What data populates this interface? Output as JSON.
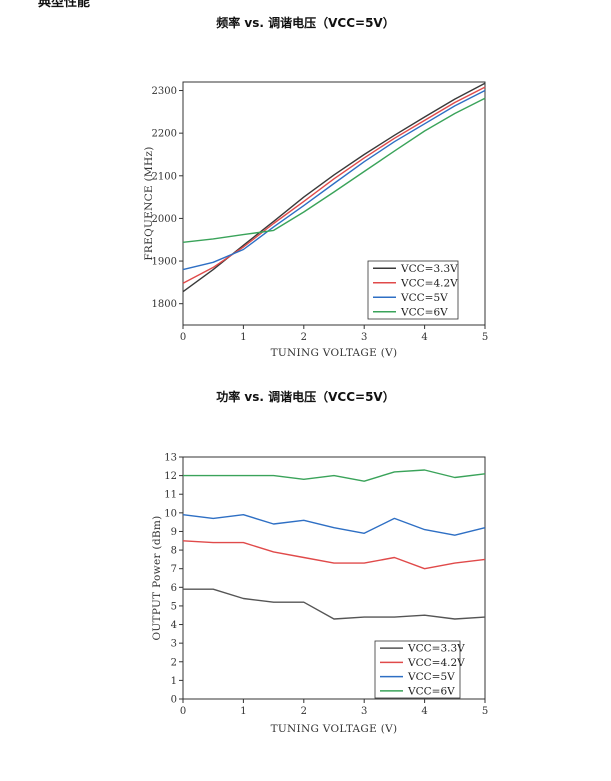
{
  "page": {
    "cut_heading": "典型性能",
    "chart1_title": "频率 vs. 调谐电压（VCC=5V）",
    "chart2_title": "功率 vs. 调谐电压（VCC=5V）"
  },
  "chart_data": [
    {
      "type": "line",
      "title": "频率 vs. 调谐电压（VCC=5V）",
      "xlabel": "TUNING VOLTAGE (V)",
      "ylabel": "FREQUENCE (MHz)",
      "xlim": [
        0,
        5
      ],
      "ylim": [
        1750,
        2320
      ],
      "xticks": [
        0,
        1,
        2,
        3,
        4,
        5
      ],
      "yticks": [
        1800,
        1900,
        2000,
        2100,
        2200,
        2300
      ],
      "grid": false,
      "legend_position": "bottom-right",
      "series": [
        {
          "name": "VCC=3.3V",
          "color": "#3a3a3a",
          "x": [
            0,
            0.5,
            1,
            1.5,
            2,
            2.5,
            3,
            3.5,
            4,
            4.5,
            5
          ],
          "y": [
            1828,
            1880,
            1937,
            1993,
            2050,
            2102,
            2150,
            2195,
            2238,
            2280,
            2317
          ]
        },
        {
          "name": "VCC=4.2V",
          "color": "#e04a4a",
          "x": [
            0,
            0.5,
            1,
            1.5,
            2,
            2.5,
            3,
            3.5,
            4,
            4.5,
            5
          ],
          "y": [
            1848,
            1885,
            1933,
            1988,
            2040,
            2093,
            2142,
            2188,
            2230,
            2272,
            2308
          ]
        },
        {
          "name": "VCC=5V",
          "color": "#2e6fc4",
          "x": [
            0,
            0.5,
            1,
            1.5,
            2,
            2.5,
            3,
            3.5,
            4,
            4.5,
            5
          ],
          "y": [
            1880,
            1897,
            1927,
            1980,
            2030,
            2082,
            2133,
            2180,
            2222,
            2264,
            2300
          ]
        },
        {
          "name": "VCC=6V",
          "color": "#3aa35a",
          "x": [
            0,
            0.5,
            1,
            1.5,
            2,
            2.5,
            3,
            3.5,
            4,
            4.5,
            5
          ],
          "y": [
            1944,
            1952,
            1962,
            1972,
            2015,
            2062,
            2110,
            2158,
            2205,
            2246,
            2282
          ]
        }
      ]
    },
    {
      "type": "line",
      "title": "功率 vs. 调谐电压（VCC=5V）",
      "xlabel": "TUNING VOLTAGE (V)",
      "ylabel": "OUTPUT Power (dBm)",
      "xlim": [
        0,
        5
      ],
      "ylim": [
        0,
        13
      ],
      "xticks": [
        0,
        1,
        2,
        3,
        4,
        5
      ],
      "yticks": [
        0,
        1,
        2,
        3,
        4,
        5,
        6,
        7,
        8,
        9,
        10,
        11,
        12,
        13
      ],
      "grid": false,
      "legend_position": "bottom-right",
      "series": [
        {
          "name": "VCC=3.3V",
          "color": "#555555",
          "x": [
            0,
            0.5,
            1,
            1.5,
            2,
            2.5,
            3,
            3.5,
            4,
            4.5,
            5
          ],
          "y": [
            5.9,
            5.9,
            5.4,
            5.2,
            5.2,
            4.3,
            4.4,
            4.4,
            4.5,
            4.3,
            4.4
          ]
        },
        {
          "name": "VCC=4.2V",
          "color": "#e04a4a",
          "x": [
            0,
            0.5,
            1,
            1.5,
            2,
            2.5,
            3,
            3.5,
            4,
            4.5,
            5
          ],
          "y": [
            8.5,
            8.4,
            8.4,
            7.9,
            7.6,
            7.3,
            7.3,
            7.6,
            7.0,
            7.3,
            7.5
          ]
        },
        {
          "name": "VCC=5V",
          "color": "#2e6fc4",
          "x": [
            0,
            0.5,
            1,
            1.5,
            2,
            2.5,
            3,
            3.5,
            4,
            4.5,
            5
          ],
          "y": [
            9.9,
            9.7,
            9.9,
            9.4,
            9.6,
            9.2,
            8.9,
            9.7,
            9.1,
            8.8,
            9.2
          ]
        },
        {
          "name": "VCC=6V",
          "color": "#3aa35a",
          "x": [
            0,
            0.5,
            1,
            1.5,
            2,
            2.5,
            3,
            3.5,
            4,
            4.5,
            5
          ],
          "y": [
            12.0,
            12.0,
            12.0,
            12.0,
            11.8,
            12.0,
            11.7,
            12.2,
            12.3,
            11.9,
            12.1
          ]
        }
      ]
    }
  ]
}
